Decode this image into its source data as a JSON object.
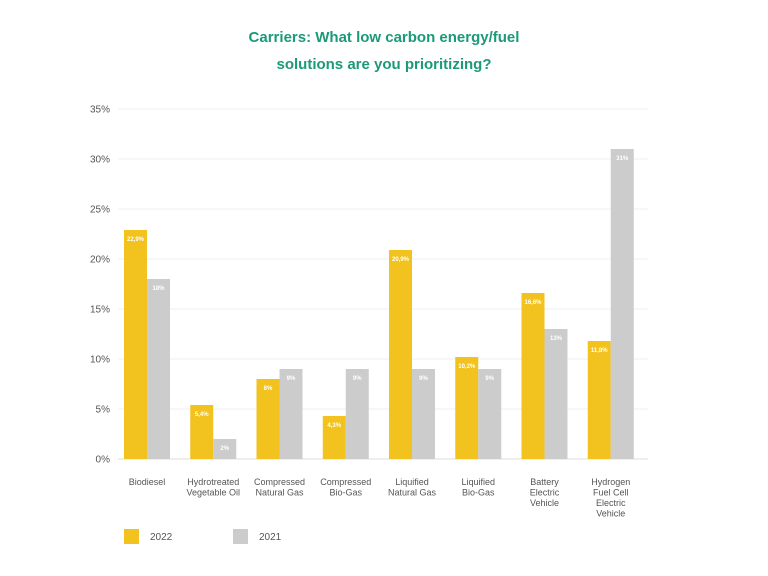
{
  "chart_data": {
    "type": "bar",
    "title_lines": [
      "Carriers: What low carbon energy/fuel",
      "solutions are you prioritizing?"
    ],
    "ylim": [
      0,
      35
    ],
    "yticks": [
      0,
      5,
      10,
      15,
      20,
      25,
      30,
      35
    ],
    "ytick_labels": [
      "0%",
      "5%",
      "10%",
      "15%",
      "20%",
      "25%",
      "30%",
      "35%"
    ],
    "categories": [
      [
        "Biodiesel"
      ],
      [
        "Hydrotreated",
        "Vegetable Oil"
      ],
      [
        "Compressed",
        "Natural Gas"
      ],
      [
        "Compressed",
        "Bio-Gas"
      ],
      [
        "Liquified",
        "Natural Gas"
      ],
      [
        "Liquified",
        "Bio-Gas"
      ],
      [
        "Battery",
        "Electric",
        "Vehicle"
      ],
      [
        "Hydrogen",
        "Fuel Cell",
        "Electric",
        "Vehicle"
      ]
    ],
    "series": [
      {
        "name": "2022",
        "color": "#f2c21f",
        "values": [
          22.9,
          5.4,
          8,
          4.3,
          20.9,
          10.2,
          16.6,
          11.8
        ],
        "labels": [
          "22,9%",
          "5,4%",
          "8%",
          "4,3%",
          "20,9%",
          "10,2%",
          "16,6%",
          "11,8%"
        ]
      },
      {
        "name": "2021",
        "color": "#cccccc",
        "values": [
          18,
          2,
          9,
          9,
          9,
          9,
          13,
          31
        ],
        "labels": [
          "18%",
          "2%",
          "9%",
          "9%",
          "9%",
          "9%",
          "13%",
          "31%"
        ]
      }
    ],
    "legend": [
      "2022",
      "2021"
    ],
    "legend_position": "bottom-left",
    "grid": true
  }
}
